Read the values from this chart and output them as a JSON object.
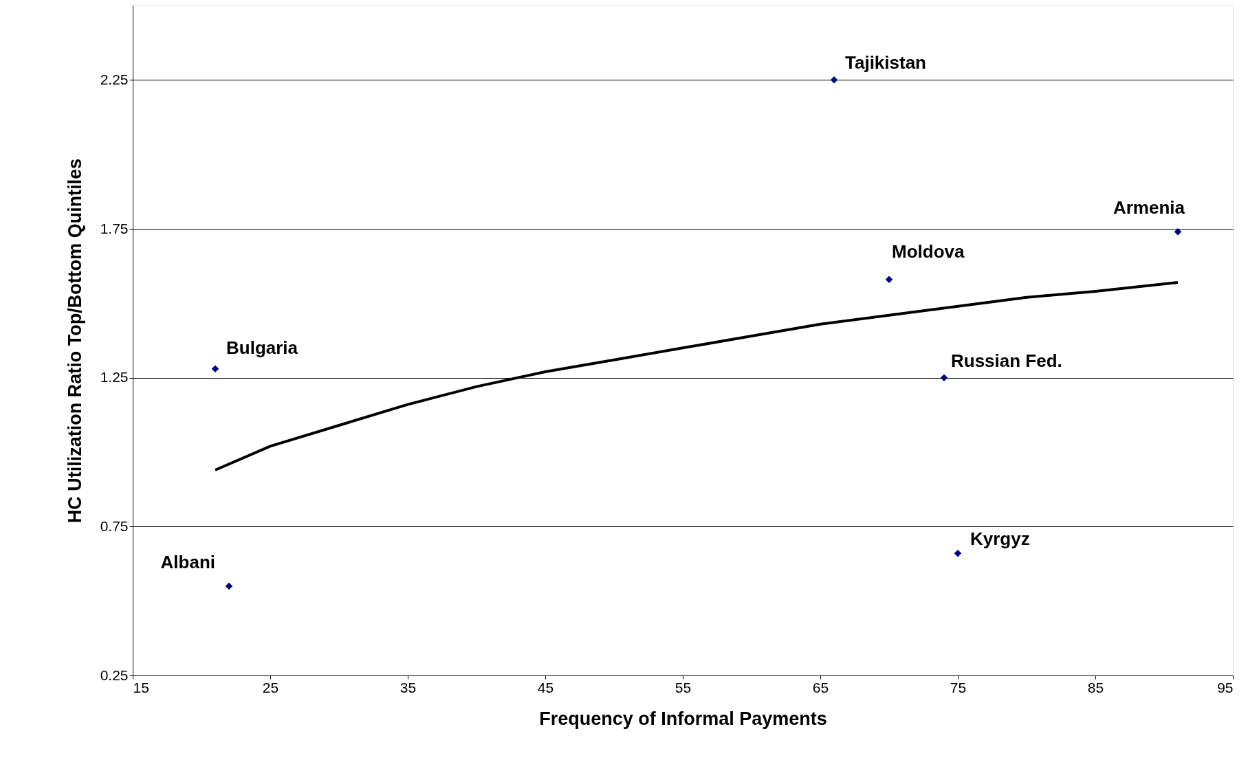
{
  "chart_data": {
    "type": "scatter",
    "xlabel": "Frequency of Informal Payments",
    "ylabel": "HC Utilization Ratio Top/Bottom Quintiles",
    "xlim": [
      15,
      95
    ],
    "xticks": [
      15,
      25,
      35,
      45,
      55,
      65,
      75,
      85,
      95
    ],
    "ylim": [
      0.25,
      2.5
    ],
    "yticks": [
      0.25,
      0.75,
      1.25,
      1.75,
      2.25
    ],
    "grid": "y",
    "series": [
      {
        "marker": "diamond",
        "color": "#000080",
        "x": [
          66,
          91,
          70,
          21,
          74,
          75,
          22
        ],
        "values": [
          2.25,
          1.74,
          1.58,
          1.28,
          1.25,
          0.66,
          0.55
        ]
      },
      {
        "type": "line",
        "color": "#000000",
        "x": [
          21,
          25,
          30,
          35,
          40,
          45,
          50,
          55,
          60,
          65,
          70,
          75,
          80,
          85,
          91
        ],
        "values": [
          0.94,
          1.02,
          1.09,
          1.16,
          1.22,
          1.27,
          1.31,
          1.35,
          1.39,
          1.43,
          1.46,
          1.49,
          1.52,
          1.54,
          1.57
        ]
      }
    ],
    "annotations": [
      {
        "text": "Tajikistan",
        "x": 66,
        "y": 2.25
      },
      {
        "text": "Armenia",
        "x": 91,
        "y": 1.74
      },
      {
        "text": "Moldova",
        "x": 70,
        "y": 1.58
      },
      {
        "text": "Bulgaria",
        "x": 21,
        "y": 1.28
      },
      {
        "text": "Russian Fed.",
        "x": 74,
        "y": 1.25
      },
      {
        "text": "Kyrgyz",
        "x": 75,
        "y": 0.66
      },
      {
        "text": "Albani",
        "x": 22,
        "y": 0.55
      }
    ]
  }
}
